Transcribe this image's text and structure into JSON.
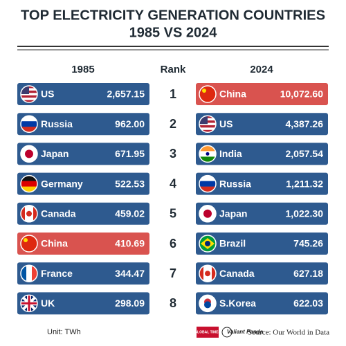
{
  "header": {
    "title_line1": "TOP ELECTRICITY GENERATION COUNTRIES",
    "title_line2": "1985 VS 2024"
  },
  "columns": {
    "left": "1985",
    "rank": "Rank",
    "right": "2024"
  },
  "rows": [
    {
      "rank": "1",
      "left": {
        "country": "US",
        "value": "2,657.15",
        "color": "#2e5a8f"
      },
      "right": {
        "country": "China",
        "value": "10,072.60",
        "color": "#d9534f"
      }
    },
    {
      "rank": "2",
      "left": {
        "country": "Russia",
        "value": "962.00",
        "color": "#2e5a8f"
      },
      "right": {
        "country": "US",
        "value": "4,387.26",
        "color": "#2e5a8f"
      }
    },
    {
      "rank": "3",
      "left": {
        "country": "Japan",
        "value": "671.95",
        "color": "#2e5a8f"
      },
      "right": {
        "country": "India",
        "value": "2,057.54",
        "color": "#2e5a8f"
      }
    },
    {
      "rank": "4",
      "left": {
        "country": "Germany",
        "value": "522.53",
        "color": "#2e5a8f"
      },
      "right": {
        "country": "Russia",
        "value": "1,211.32",
        "color": "#2e5a8f"
      }
    },
    {
      "rank": "5",
      "left": {
        "country": "Canada",
        "value": "459.02",
        "color": "#2e5a8f"
      },
      "right": {
        "country": "Japan",
        "value": "1,022.30",
        "color": "#2e5a8f"
      }
    },
    {
      "rank": "6",
      "left": {
        "country": "China",
        "value": "410.69",
        "color": "#d9534f"
      },
      "right": {
        "country": "Brazil",
        "value": "745.26",
        "color": "#2e5a8f"
      }
    },
    {
      "rank": "7",
      "left": {
        "country": "France",
        "value": "344.47",
        "color": "#2e5a8f"
      },
      "right": {
        "country": "Canada",
        "value": "627.18",
        "color": "#2e5a8f"
      }
    },
    {
      "rank": "8",
      "left": {
        "country": "UK",
        "value": "298.09",
        "color": "#2e5a8f"
      },
      "right": {
        "country": "S.Korea",
        "value": "622.03",
        "color": "#2e5a8f"
      }
    }
  ],
  "footer": {
    "unit": "Unit: TWh",
    "logo1": "GLOBAL TIMES",
    "logo2": "Valiant Panda",
    "source": "Source: Our World in Data"
  }
}
